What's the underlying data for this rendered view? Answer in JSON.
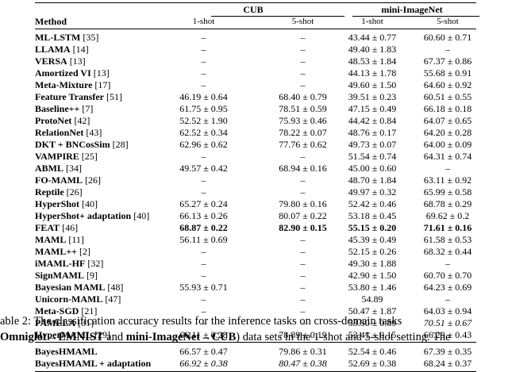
{
  "table": {
    "method_header": "Method",
    "groups": [
      "CUB",
      "mini-ImageNet"
    ],
    "shots": [
      "1-shot",
      "5-shot",
      "1-shot",
      "5-shot"
    ],
    "rows": [
      {
        "method": "ML-LSTM",
        "ref": "[35]",
        "cells": [
          "–",
          "–",
          "43.44 ± 0.77",
          "60.60 ± 0.71"
        ],
        "bold": [
          false,
          false,
          false,
          false
        ],
        "italic": [
          false,
          false,
          false,
          false
        ]
      },
      {
        "method": "LLAMA",
        "ref": "[14]",
        "cells": [
          "–",
          "–",
          "49.40 ± 1.83",
          "–"
        ],
        "bold": [
          false,
          false,
          false,
          false
        ],
        "italic": [
          false,
          false,
          false,
          false
        ]
      },
      {
        "method": "VERSA",
        "ref": "[13]",
        "cells": [
          "–",
          "–",
          "48.53 ± 1.84",
          "67.37 ± 0.86"
        ],
        "bold": [
          false,
          false,
          false,
          false
        ],
        "italic": [
          false,
          false,
          false,
          false
        ]
      },
      {
        "method": "Amortized VI",
        "ref": "[13]",
        "cells": [
          "–",
          "–",
          "44.13 ± 1.78",
          "55.68 ± 0.91"
        ],
        "bold": [
          false,
          false,
          false,
          false
        ],
        "italic": [
          false,
          false,
          false,
          false
        ]
      },
      {
        "method": "Meta-Mixture",
        "ref": "[17]",
        "cells": [
          "–",
          "–",
          "49.60 ± 1.50",
          "64.60 ± 0.92"
        ],
        "bold": [
          false,
          false,
          false,
          false
        ],
        "italic": [
          false,
          false,
          false,
          false
        ]
      },
      {
        "method": "Feature Transfer",
        "ref": "[51]",
        "cells": [
          "46.19 ± 0.64",
          "68.40 ± 0.79",
          "39.51 ± 0.23",
          "60.51 ± 0.55"
        ],
        "bold": [
          false,
          false,
          false,
          false
        ],
        "italic": [
          false,
          false,
          false,
          false
        ]
      },
      {
        "method": "Baseline++",
        "ref": "[7]",
        "cells": [
          "61.75 ± 0.95",
          "78.51 ± 0.59",
          "47.15 ± 0.49",
          "66.18 ± 0.18"
        ],
        "bold": [
          false,
          false,
          false,
          false
        ],
        "italic": [
          false,
          false,
          false,
          false
        ]
      },
      {
        "method": "ProtoNet",
        "ref": "[42]",
        "cells": [
          "52.52 ± 1.90",
          "75.93 ± 0.46",
          "44.42 ± 0.84",
          "64.07 ± 0.65"
        ],
        "bold": [
          false,
          false,
          false,
          false
        ],
        "italic": [
          false,
          false,
          false,
          false
        ]
      },
      {
        "method": "RelationNet",
        "ref": "[43]",
        "cells": [
          "62.52 ± 0.34",
          "78.22 ± 0.07",
          "48.76 ± 0.17",
          "64.20 ± 0.28"
        ],
        "bold": [
          false,
          false,
          false,
          false
        ],
        "italic": [
          false,
          false,
          false,
          false
        ]
      },
      {
        "method": "DKT + BNCosSim",
        "ref": "[28]",
        "cells": [
          "62.96 ± 0.62",
          "77.76 ± 0.62",
          "49.73 ± 0.07",
          "64.00 ± 0.09"
        ],
        "bold": [
          false,
          false,
          false,
          false
        ],
        "italic": [
          false,
          false,
          false,
          false
        ]
      },
      {
        "method": "VAMPIRE",
        "ref": "[25]",
        "cells": [
          "–",
          "–",
          "51.54 ± 0.74",
          "64.31 ± 0.74"
        ],
        "bold": [
          false,
          false,
          false,
          false
        ],
        "italic": [
          false,
          false,
          false,
          false
        ]
      },
      {
        "method": "ABML",
        "ref": "[34]",
        "cells": [
          "49.57 ± 0.42",
          "68.94 ± 0.16",
          "45.00 ± 0.60",
          "–"
        ],
        "bold": [
          false,
          false,
          false,
          false
        ],
        "italic": [
          false,
          false,
          false,
          false
        ]
      },
      {
        "method": "FO-MAML",
        "ref": "[26]",
        "cells": [
          "–",
          "–",
          "48.70 ± 1.84",
          "63.11 ± 0.92"
        ],
        "bold": [
          false,
          false,
          false,
          false
        ],
        "italic": [
          false,
          false,
          false,
          false
        ]
      },
      {
        "method": "Reptile",
        "ref": "[26]",
        "cells": [
          "–",
          "–",
          "49.97 ± 0.32",
          "65.99 ± 0.58"
        ],
        "bold": [
          false,
          false,
          false,
          false
        ],
        "italic": [
          false,
          false,
          false,
          false
        ]
      },
      {
        "method": "HyperShot",
        "ref": "[40]",
        "cells": [
          "65.27 ± 0.24",
          "79.80 ± 0.16",
          "52.42 ± 0.46",
          "68.78 ± 0.29"
        ],
        "bold": [
          false,
          false,
          false,
          false
        ],
        "italic": [
          false,
          false,
          false,
          false
        ]
      },
      {
        "method": "HyperShot+ adaptation",
        "ref": "[40]",
        "cells": [
          "66.13 ± 0.26",
          "80.07 ± 0.22",
          "53.18 ± 0.45",
          "69.62 ± 0.2"
        ],
        "bold": [
          false,
          false,
          false,
          false
        ],
        "italic": [
          false,
          false,
          false,
          false
        ]
      },
      {
        "method": "FEAT",
        "ref": "[46]",
        "cells": [
          "68.87 ± 0.22",
          "82.90 ± 0.15",
          "55.15 ± 0.20",
          "71.61 ± 0.16"
        ],
        "bold": [
          true,
          true,
          true,
          true
        ],
        "italic": [
          false,
          false,
          false,
          false
        ]
      },
      {
        "method": "MAML",
        "ref": "[11]",
        "cells": [
          "56.11 ± 0.69",
          "–",
          "45.39 ± 0.49",
          "61.58 ± 0.53"
        ],
        "bold": [
          false,
          false,
          false,
          false
        ],
        "italic": [
          false,
          false,
          false,
          false
        ]
      },
      {
        "method": "MAML++",
        "ref": "[2]",
        "cells": [
          "–",
          "–",
          "52.15 ± 0.26",
          "68.32 ± 0.44"
        ],
        "bold": [
          false,
          false,
          false,
          false
        ],
        "italic": [
          false,
          false,
          false,
          false
        ]
      },
      {
        "method": "iMAML-HF",
        "ref": "[32]",
        "cells": [
          "–",
          "–",
          "49.30 ± 1.88",
          "–"
        ],
        "bold": [
          false,
          false,
          false,
          false
        ],
        "italic": [
          false,
          false,
          false,
          false
        ]
      },
      {
        "method": "SignMAML",
        "ref": "[9]",
        "cells": [
          "–",
          "–",
          "42.90 ± 1.50",
          "60.70 ± 0.70"
        ],
        "bold": [
          false,
          false,
          false,
          false
        ],
        "italic": [
          false,
          false,
          false,
          false
        ]
      },
      {
        "method": "Bayesian MAML",
        "ref": "[48]",
        "cells": [
          "55.93 ± 0.71",
          "–",
          "53.80 ± 1.46",
          "64.23 ± 0.69"
        ],
        "bold": [
          false,
          false,
          false,
          false
        ],
        "italic": [
          false,
          false,
          false,
          false
        ]
      },
      {
        "method": "Unicorn-MAML",
        "ref": "[47]",
        "cells": [
          "–",
          "–",
          "54.89",
          "–"
        ],
        "bold": [
          false,
          false,
          false,
          false
        ],
        "italic": [
          false,
          false,
          false,
          false
        ]
      },
      {
        "method": "Meta-SGD",
        "ref": "[21]",
        "cells": [
          "–",
          "–",
          "50.47 ± 1.87",
          "64.03 ± 0.94"
        ],
        "bold": [
          false,
          false,
          false,
          false
        ],
        "italic": [
          false,
          false,
          false,
          false
        ]
      },
      {
        "method": "PAMELA",
        "ref": "[31]",
        "cells": [
          "–",
          "–",
          "53.50 ± 0.89",
          "70.51 ± 0.67"
        ],
        "bold": [
          false,
          false,
          false,
          false
        ],
        "italic": [
          false,
          false,
          false,
          true
        ]
      },
      {
        "method": "HyperMAML",
        "ref": "[29]",
        "cells": [
          "66.11 ± 0.28",
          "78.89 ± 0.19",
          "53.41 ± 0.15",
          "66.29 ± 0.43"
        ],
        "bold": [
          false,
          false,
          false,
          false
        ],
        "italic": [
          false,
          false,
          false,
          false
        ]
      }
    ],
    "ours": [
      {
        "method": "BayesHMAML",
        "ref": "",
        "cells": [
          "66.57 ± 0.47",
          "79.86 ± 0.31",
          "52.54 ± 0.46",
          "67.39 ± 0.35"
        ],
        "bold": [
          false,
          false,
          false,
          false
        ],
        "italic": [
          false,
          false,
          false,
          false
        ]
      },
      {
        "method": "BayesHMAML + adaptation",
        "ref": "",
        "cells": [
          "66.92 ± 0.38",
          "80.47 ± 0.38",
          "52.69 ± 0.38",
          "68.24 ± 0.37"
        ],
        "bold": [
          false,
          false,
          false,
          false
        ],
        "italic": [
          true,
          true,
          false,
          false
        ]
      }
    ]
  },
  "caption": {
    "line1": "able 2:  The classification accuracy results for the inference tasks on cross-domain tasks",
    "line2_a": "Omniglot→EMNIST",
    "line2_b": " and ",
    "line2_c": "mini-ImageNet→CUB",
    "line2_d": ") data sets in the 1-shot and 5-shot setting.  The"
  }
}
